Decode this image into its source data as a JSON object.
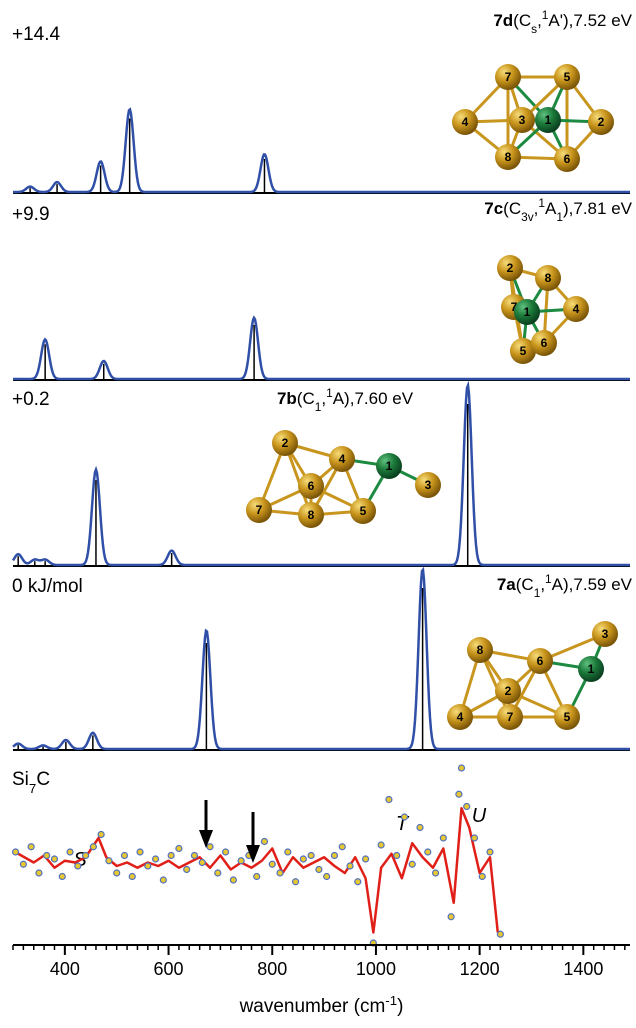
{
  "chart_data": {
    "type": "line",
    "x_label": [
      {
        "text": "wavenumber (cm",
        "style": "normal"
      },
      {
        "text": "-1",
        "style": "sup"
      },
      {
        "text": ")",
        "style": "normal"
      }
    ],
    "xlim": [
      300,
      1490
    ],
    "xticks": [
      400,
      600,
      800,
      1000,
      1200,
      1400
    ],
    "xticks_minor": [
      300,
      320,
      340,
      360,
      380,
      400,
      420,
      440,
      460,
      480,
      500,
      520,
      540,
      560,
      580,
      600,
      620,
      640,
      660,
      680,
      700,
      720,
      740,
      760,
      780,
      800,
      820,
      840,
      860,
      880,
      900,
      920,
      940,
      960,
      980,
      1000,
      1020,
      1040,
      1060,
      1080,
      1100,
      1120,
      1140,
      1160,
      1180,
      1200,
      1220,
      1240,
      1260,
      1280,
      1300,
      1320,
      1340,
      1360,
      1380,
      1400,
      1420,
      1440,
      1460,
      1480
    ],
    "stick_color": "#000000",
    "curve_color": "#3050a8",
    "panels": [
      {
        "energy": "+14.4",
        "label": [
          {
            "text": "7d",
            "style": "bold"
          },
          {
            "text": "(C",
            "style": "normal"
          },
          {
            "text": "s",
            "style": "sub"
          },
          {
            "text": ",",
            "style": "normal"
          },
          {
            "text": "1",
            "style": "sup"
          },
          {
            "text": "A'),7.52 eV",
            "style": "normal"
          }
        ],
        "x": [
          333,
          385,
          469,
          525,
          785
        ],
        "values": [
          3,
          5.5,
          17,
          46,
          21
        ],
        "atoms": [
          "7",
          "5",
          "4",
          "3",
          "1",
          "2",
          "8",
          "6"
        ]
      },
      {
        "energy": "+9.9",
        "label": [
          {
            "text": "7c",
            "style": "bold"
          },
          {
            "text": "(C",
            "style": "normal"
          },
          {
            "text": "3v",
            "style": "sub"
          },
          {
            "text": ",",
            "style": "normal"
          },
          {
            "text": "1",
            "style": "sup"
          },
          {
            "text": "A",
            "style": "normal"
          },
          {
            "text": "1",
            "style": "sub"
          },
          {
            "text": "),7.81 eV",
            "style": "normal"
          }
        ],
        "x": [
          362,
          475,
          765
        ],
        "values": [
          22,
          10,
          34
        ],
        "atoms": [
          "2",
          "8",
          "7",
          "1",
          "4",
          "5",
          "6"
        ]
      },
      {
        "energy": "+0.2",
        "label": [
          {
            "text": "7b",
            "style": "bold"
          },
          {
            "text": "(C",
            "style": "normal"
          },
          {
            "text": "1",
            "style": "sub"
          },
          {
            "text": ",",
            "style": "normal"
          },
          {
            "text": "1",
            "style": "sup"
          },
          {
            "text": "A),7.60 eV",
            "style": "normal"
          }
        ],
        "x": [
          310,
          342,
          362,
          460,
          606,
          1177
        ],
        "values": [
          6,
          3,
          3,
          53,
          8,
          100
        ],
        "atoms": [
          "2",
          "4",
          "1",
          "3",
          "6",
          "7",
          "8",
          "5"
        ]
      },
      {
        "energy": "0 kJ/mol",
        "label": [
          {
            "text": "7a",
            "style": "bold"
          },
          {
            "text": "(C",
            "style": "normal"
          },
          {
            "text": "1",
            "style": "sub"
          },
          {
            "text": ",",
            "style": "normal"
          },
          {
            "text": "1",
            "style": "sup"
          },
          {
            "text": "A),7.59 eV",
            "style": "normal"
          }
        ],
        "x": [
          310,
          358,
          402,
          454,
          673,
          1090
        ],
        "values": [
          3,
          2,
          5,
          9,
          66,
          100
        ],
        "atoms": [
          "3",
          "8",
          "6",
          "1",
          "2",
          "4",
          "7",
          "5"
        ]
      }
    ],
    "experiment": {
      "label": [
        {
          "text": "Si",
          "style": "normal"
        },
        {
          "text": "7",
          "style": "sub"
        },
        {
          "text": "C",
          "style": "normal"
        }
      ],
      "ylim": [
        0,
        100
      ],
      "annotations": [
        "S",
        "T",
        "U"
      ],
      "line_color": "#e02018",
      "line_x": [
        310,
        340,
        360,
        380,
        400,
        420,
        440,
        465,
        480,
        500,
        520,
        540,
        560,
        580,
        600,
        620,
        640,
        660,
        680,
        700,
        720,
        740,
        760,
        780,
        800,
        820,
        840,
        860,
        880,
        900,
        920,
        940,
        960,
        980,
        995,
        1010,
        1030,
        1050,
        1070,
        1090,
        1110,
        1130,
        1150,
        1165,
        1180,
        1200,
        1220,
        1235
      ],
      "line_values": [
        51,
        46,
        50,
        43,
        47,
        46,
        49,
        60,
        49,
        44,
        46,
        43,
        46,
        44,
        47,
        43,
        46,
        49,
        43,
        50,
        42,
        46,
        43,
        47,
        54,
        40,
        49,
        43,
        46,
        49,
        44,
        40,
        49,
        37,
        6,
        43,
        51,
        37,
        57,
        49,
        43,
        54,
        23,
        77,
        66,
        40,
        49,
        6
      ],
      "points_x": [
        305,
        320,
        335,
        350,
        365,
        380,
        395,
        410,
        425,
        440,
        455,
        470,
        485,
        500,
        515,
        530,
        545,
        560,
        575,
        590,
        605,
        620,
        635,
        650,
        665,
        680,
        695,
        710,
        725,
        740,
        755,
        770,
        785,
        800,
        815,
        830,
        845,
        860,
        875,
        890,
        905,
        920,
        935,
        950,
        965,
        980,
        995,
        1010,
        1025,
        1040,
        1055,
        1070,
        1085,
        1100,
        1115,
        1130,
        1145,
        1160,
        1165,
        1175,
        1190,
        1205,
        1220,
        1240
      ],
      "points_values": [
        52,
        45,
        55,
        40,
        50,
        48,
        38,
        52,
        44,
        50,
        55,
        62,
        47,
        40,
        50,
        38,
        52,
        44,
        48,
        36,
        50,
        54,
        42,
        50,
        46,
        55,
        40,
        52,
        36,
        47,
        50,
        38,
        58,
        45,
        40,
        52,
        35,
        48,
        50,
        42,
        38,
        50,
        55,
        44,
        35,
        48,
        0,
        56,
        82,
        50,
        72,
        45,
        66,
        52,
        40,
        60,
        15,
        85,
        100,
        78,
        60,
        38,
        52,
        5
      ],
      "point_fill": "#e8c830",
      "point_stroke": "#5070c0"
    }
  }
}
